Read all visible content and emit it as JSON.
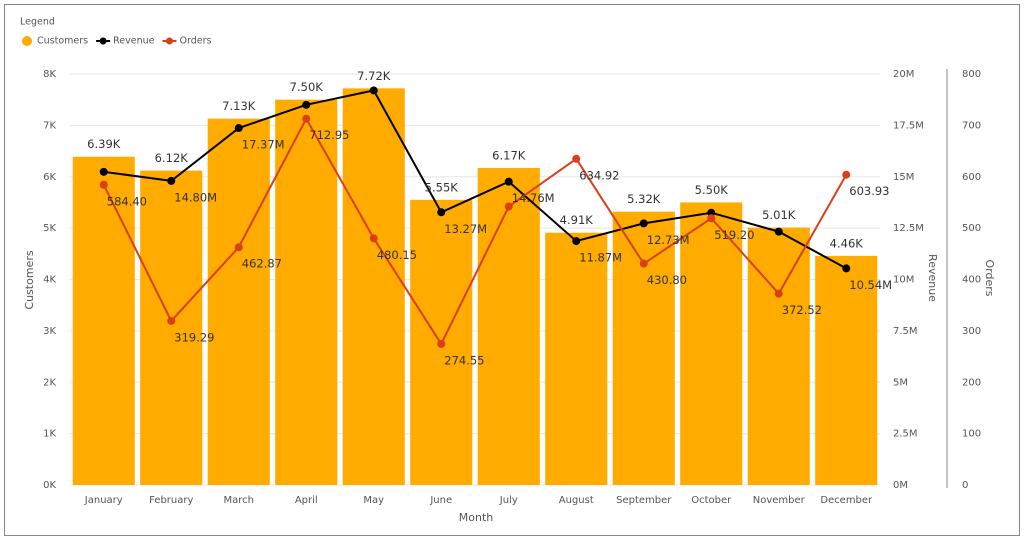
{
  "chart_data": {
    "type": "combo",
    "legend_title": "Legend",
    "x_label": "Month",
    "y_label": "Customers",
    "y2_label": "Revenue",
    "y3_label": "Orders",
    "categories": [
      "January",
      "February",
      "March",
      "April",
      "May",
      "June",
      "July",
      "August",
      "September",
      "October",
      "November",
      "December"
    ],
    "series": [
      {
        "name": "Customers",
        "type": "bar",
        "color": "#FFAB00",
        "axis": "y",
        "values": [
          6390,
          6120,
          7130,
          7500,
          7720,
          5550,
          6170,
          4910,
          5320,
          5500,
          5010,
          4460
        ],
        "value_labels": [
          "6.39K",
          "6.12K",
          "7.13K",
          "7.50K",
          "7.72K",
          "5.55K",
          "6.17K",
          "4.91K",
          "5.32K",
          "5.50K",
          "5.01K",
          "4.46K"
        ]
      },
      {
        "name": "Revenue",
        "type": "line",
        "color": "#000000",
        "axis": "y2",
        "values": [
          15240000,
          14800000,
          17370000,
          18500000,
          19200000,
          13270000,
          14760000,
          11870000,
          12730000,
          13250000,
          12330000,
          10540000
        ],
        "value_labels": [
          null,
          "14.80M",
          "17.37M",
          null,
          null,
          "13.27M",
          "14.76M",
          "11.87M",
          "12.73M",
          null,
          null,
          "10.54M"
        ]
      },
      {
        "name": "Orders",
        "type": "line",
        "color": "#D9401A",
        "axis": "y3",
        "values": [
          584.4,
          319.29,
          462.87,
          712.95,
          480.15,
          274.55,
          542,
          634.92,
          430.8,
          519.2,
          372.52,
          603.93
        ],
        "value_labels": [
          "584.40",
          "319.29",
          "462.87",
          "712.95",
          "480.15",
          "274.55",
          null,
          "634.92",
          "430.80",
          "519.20",
          "372.52",
          "603.93"
        ]
      }
    ],
    "ylim": [
      0,
      8000
    ],
    "yticks": [
      {
        "value": 0,
        "label": "0K"
      },
      {
        "value": 1000,
        "label": "1K"
      },
      {
        "value": 2000,
        "label": "2K"
      },
      {
        "value": 3000,
        "label": "3K"
      },
      {
        "value": 4000,
        "label": "4K"
      },
      {
        "value": 5000,
        "label": "5K"
      },
      {
        "value": 6000,
        "label": "6K"
      },
      {
        "value": 7000,
        "label": "7K"
      },
      {
        "value": 8000,
        "label": "8K"
      }
    ],
    "y2lim": [
      0,
      20000000
    ],
    "y2ticks": [
      {
        "value": 0,
        "label": "0M"
      },
      {
        "value": 2500000,
        "label": "2.5M"
      },
      {
        "value": 5000000,
        "label": "5M"
      },
      {
        "value": 7500000,
        "label": "7.5M"
      },
      {
        "value": 10000000,
        "label": "10M"
      },
      {
        "value": 12500000,
        "label": "12.5M"
      },
      {
        "value": 15000000,
        "label": "15M"
      },
      {
        "value": 17500000,
        "label": "17.5M"
      },
      {
        "value": 20000000,
        "label": "20M"
      }
    ],
    "y3lim": [
      0,
      800
    ],
    "y3ticks": [
      0,
      100,
      200,
      300,
      400,
      500,
      600,
      700,
      800
    ],
    "grid": true
  }
}
